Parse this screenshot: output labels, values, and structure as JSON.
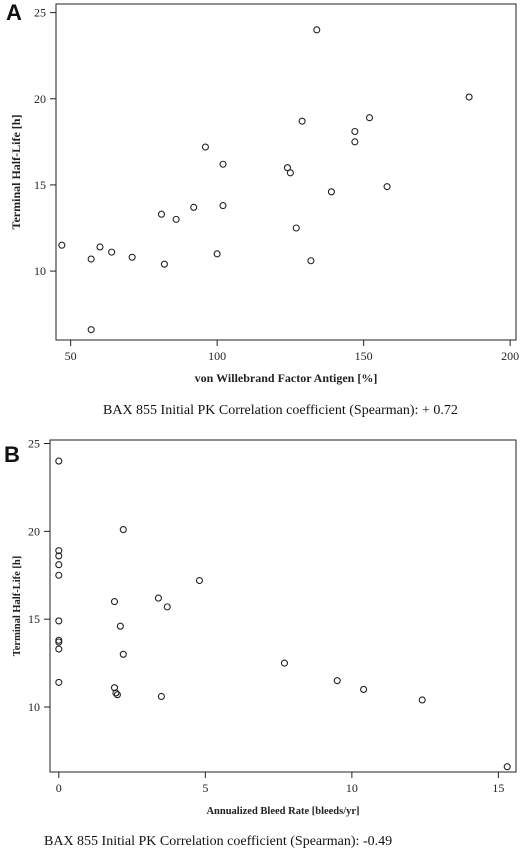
{
  "chart_data": [
    {
      "type": "scatter",
      "panel_label": "A",
      "xlabel": "von Willebrand Factor Antigen [%]",
      "ylabel": "Terminal Half-Life [h]",
      "caption": "BAX 855 Initial PK Correlation coefficient (Spearman): + 0.72",
      "xlim": [
        45,
        202
      ],
      "ylim": [
        6,
        25.5
      ],
      "xticks": [
        50,
        100,
        150,
        200
      ],
      "yticks": [
        10,
        15,
        20,
        25
      ],
      "grid": false,
      "points": [
        {
          "x": 47,
          "y": 11.5
        },
        {
          "x": 57,
          "y": 6.6
        },
        {
          "x": 57,
          "y": 10.7
        },
        {
          "x": 60,
          "y": 11.4
        },
        {
          "x": 64,
          "y": 11.1
        },
        {
          "x": 71,
          "y": 10.8
        },
        {
          "x": 81,
          "y": 13.3
        },
        {
          "x": 82,
          "y": 10.4
        },
        {
          "x": 86,
          "y": 13.0
        },
        {
          "x": 92,
          "y": 13.7
        },
        {
          "x": 96,
          "y": 17.2
        },
        {
          "x": 100,
          "y": 11.0
        },
        {
          "x": 102,
          "y": 16.2
        },
        {
          "x": 102,
          "y": 13.8
        },
        {
          "x": 124,
          "y": 16.0
        },
        {
          "x": 125,
          "y": 15.7
        },
        {
          "x": 127,
          "y": 12.5
        },
        {
          "x": 129,
          "y": 18.7
        },
        {
          "x": 132,
          "y": 10.6
        },
        {
          "x": 134,
          "y": 24.0
        },
        {
          "x": 139,
          "y": 14.6
        },
        {
          "x": 147,
          "y": 18.1
        },
        {
          "x": 147,
          "y": 17.5
        },
        {
          "x": 152,
          "y": 18.9
        },
        {
          "x": 158,
          "y": 14.9
        },
        {
          "x": 186,
          "y": 20.1
        }
      ]
    },
    {
      "type": "scatter",
      "panel_label": "B",
      "xlabel": "Annualized Bleed Rate [bleeds/yr]",
      "ylabel": "Terminal Half-Life [h]",
      "caption": "BAX 855 Initial PK Correlation coefficient (Spearman): -0.49",
      "xlim": [
        -0.3,
        15.6
      ],
      "ylim": [
        6.3,
        25.2
      ],
      "xticks": [
        0,
        5,
        10,
        15
      ],
      "yticks": [
        10,
        15,
        20,
        25
      ],
      "grid": false,
      "points": [
        {
          "x": 0,
          "y": 24.0
        },
        {
          "x": 0,
          "y": 18.9
        },
        {
          "x": 0,
          "y": 18.6
        },
        {
          "x": 0,
          "y": 18.1
        },
        {
          "x": 0,
          "y": 17.5
        },
        {
          "x": 0,
          "y": 14.9
        },
        {
          "x": 0,
          "y": 13.8
        },
        {
          "x": 0,
          "y": 13.7
        },
        {
          "x": 0,
          "y": 13.3
        },
        {
          "x": 0,
          "y": 11.4
        },
        {
          "x": 1.9,
          "y": 11.1
        },
        {
          "x": 1.95,
          "y": 10.8
        },
        {
          "x": 2.0,
          "y": 10.7
        },
        {
          "x": 1.9,
          "y": 16.0
        },
        {
          "x": 2.1,
          "y": 14.6
        },
        {
          "x": 2.2,
          "y": 13.0
        },
        {
          "x": 2.2,
          "y": 20.1
        },
        {
          "x": 3.4,
          "y": 16.2
        },
        {
          "x": 3.5,
          "y": 10.6
        },
        {
          "x": 3.7,
          "y": 15.7
        },
        {
          "x": 4.8,
          "y": 17.2
        },
        {
          "x": 7.7,
          "y": 12.5
        },
        {
          "x": 9.5,
          "y": 11.5
        },
        {
          "x": 10.4,
          "y": 11.0
        },
        {
          "x": 12.4,
          "y": 10.4
        },
        {
          "x": 15.3,
          "y": 6.6
        }
      ]
    }
  ]
}
